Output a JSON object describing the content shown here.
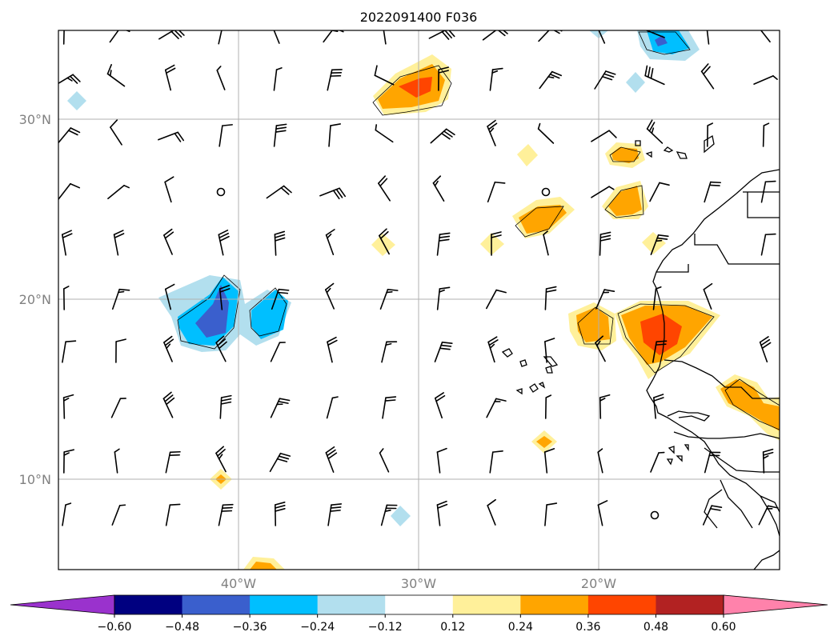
{
  "title": "2022091400 F036",
  "map": {
    "lat_ticks": [
      {
        "lat": 30,
        "label": "30°N"
      },
      {
        "lat": 20,
        "label": "20°N"
      },
      {
        "lat": 10,
        "label": "10°N"
      }
    ],
    "lon_ticks": [
      {
        "lon": -40,
        "label": "40°W"
      },
      {
        "lon": -30,
        "label": "30°W"
      },
      {
        "lon": -20,
        "label": "20°W"
      }
    ],
    "extent": {
      "lon_min": -50,
      "lon_max": -10,
      "lat_min": 5,
      "lat_max": 35
    },
    "grid": true,
    "coastline_color": "#000000"
  },
  "colorbar": {
    "ticks": [
      "−0.60",
      "−0.48",
      "−0.36",
      "−0.24",
      "−0.12",
      "0.12",
      "0.24",
      "0.36",
      "0.48",
      "0.60"
    ],
    "colors": {
      "under": "#9a32cd",
      "bins": [
        "#000080",
        "#3a5fcd",
        "#00bfff",
        "#b2dfee",
        "#ffffff",
        "#fff09a",
        "#ffa500",
        "#ff4500",
        "#b22222"
      ],
      "over": "#ff82ab"
    },
    "extend": "both"
  },
  "contour_colors": {
    "neg_light": "#b2dfee",
    "neg_mid": "#00bfff",
    "neg_dark": "#3a5fcd",
    "pos_light": "#fff09a",
    "pos_mid": "#ffa500",
    "pos_dark": "#ff4500"
  }
}
